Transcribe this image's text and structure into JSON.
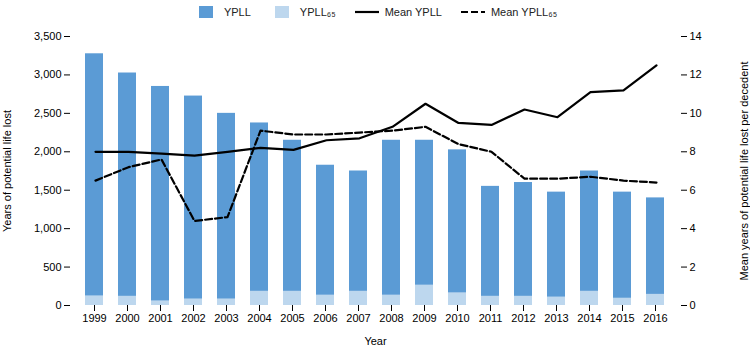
{
  "chart_data": {
    "type": "bar",
    "xlabel": "Year",
    "ylabel": "Years of potential life lost",
    "y2label": "Mean years of potential life lost per decedent",
    "categories": [
      "1999",
      "2000",
      "2001",
      "2002",
      "2003",
      "2004",
      "2005",
      "2006",
      "2007",
      "2008",
      "2009",
      "2010",
      "2011",
      "2012",
      "2013",
      "2014",
      "2015",
      "2016"
    ],
    "series": [
      {
        "name": "YPLL",
        "type": "bar",
        "color": "#5B9BD5",
        "values": [
          3275,
          3025,
          2850,
          2725,
          2500,
          2375,
          2150,
          1825,
          1750,
          2150,
          2150,
          2025,
          1550,
          1600,
          1475,
          1750,
          1475,
          1400
        ]
      },
      {
        "name": "YPLL₆₅",
        "type": "bar",
        "color": "#BDD7EE",
        "values": [
          125,
          120,
          60,
          85,
          85,
          185,
          185,
          135,
          185,
          135,
          265,
          165,
          120,
          120,
          110,
          185,
          95,
          145
        ]
      },
      {
        "name": "Mean YPLL",
        "type": "line",
        "axis": "y2",
        "color": "#000000",
        "line_style": "solid",
        "values": [
          8.0,
          8.0,
          7.9,
          7.8,
          8.0,
          8.2,
          8.1,
          8.6,
          8.7,
          9.3,
          10.5,
          9.5,
          9.4,
          10.2,
          9.8,
          11.1,
          11.2,
          12.5
        ]
      },
      {
        "name": "Mean YPLL₆₅",
        "type": "line",
        "axis": "y2",
        "color": "#000000",
        "line_style": "dashed",
        "values": [
          6.5,
          7.2,
          7.6,
          4.4,
          4.6,
          9.1,
          8.9,
          8.9,
          9.0,
          9.1,
          9.3,
          8.4,
          8.0,
          6.6,
          6.6,
          6.7,
          6.5,
          6.4
        ]
      }
    ],
    "ylim": [
      0,
      3500
    ],
    "yticks": [
      0,
      500,
      {
        "value": 1000,
        "label": "1,000"
      },
      {
        "value": 1500,
        "label": "1,500"
      },
      {
        "value": 2000,
        "label": "2,000"
      },
      {
        "value": 2500,
        "label": "2,500"
      },
      {
        "value": 3000,
        "label": "3,000"
      },
      {
        "value": 3500,
        "label": "3,500"
      }
    ],
    "y2lim": [
      0,
      14
    ],
    "y2ticks": [
      0,
      2,
      4,
      6,
      8,
      10,
      12,
      14
    ],
    "stacked": false,
    "grid": false,
    "legend": "top"
  }
}
